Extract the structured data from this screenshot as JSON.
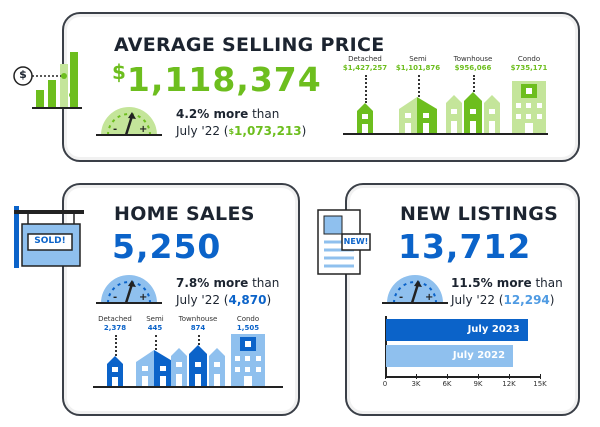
{
  "colors": {
    "green": "#6dbe1e",
    "green_light": "#c4e59a",
    "blue": "#0b63c9",
    "blue_light": "#8fc0ee",
    "border": "#3a3f47"
  },
  "avg_price": {
    "title": "AVERAGE SELLING PRICE",
    "currency": "$",
    "value": "1,118,374",
    "change": "4.2% more",
    "than": " than",
    "prev_prefix": "July '22 (",
    "prev_currency": "$",
    "prev_value": "1,073,213",
    "prev_suffix": ")",
    "types": [
      {
        "label": "Detached",
        "value": "$1,427,257"
      },
      {
        "label": "Semi",
        "value": "$1,101,876"
      },
      {
        "label": "Townhouse",
        "value": "$956,066"
      },
      {
        "label": "Condo",
        "value": "$735,171"
      }
    ],
    "icon_symbol": "$"
  },
  "home_sales": {
    "title": "HOME SALES",
    "value": "5,250",
    "change": "7.8% more",
    "than": " than",
    "prev_prefix": "July '22 (",
    "prev_value": "4,870",
    "prev_suffix": ")",
    "sign_text": "SOLD!",
    "types": [
      {
        "label": "Detached",
        "value": "2,378"
      },
      {
        "label": "Semi",
        "value": "445"
      },
      {
        "label": "Townhouse",
        "value": "874"
      },
      {
        "label": "Condo",
        "value": "1,505"
      }
    ]
  },
  "new_listings": {
    "title": "NEW LISTINGS",
    "value": "13,712",
    "change": "11.5% more",
    "than": " than",
    "prev_prefix": "July '22 (",
    "prev_value": "12,294",
    "prev_suffix": ")",
    "paper_text": "NEW!",
    "chart_data": {
      "type": "bar",
      "orientation": "horizontal",
      "categories": [
        "July 2023",
        "July 2022"
      ],
      "values": [
        13712,
        12294
      ],
      "xlim": [
        0,
        15000
      ],
      "xticks": [
        "0",
        "3K",
        "6K",
        "9K",
        "12K",
        "15K"
      ]
    }
  },
  "gauge": {
    "minus": "-",
    "plus": "+"
  }
}
